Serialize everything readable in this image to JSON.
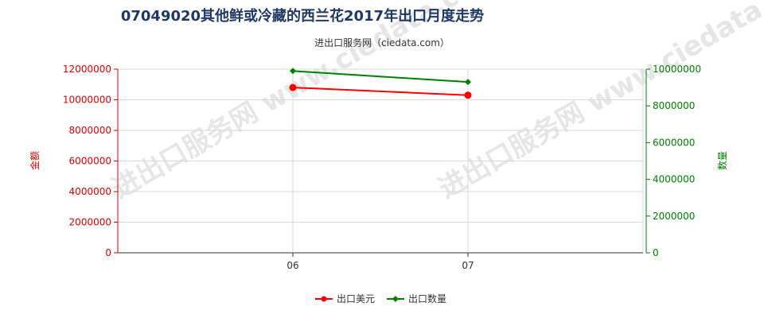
{
  "header": {
    "title": "07049020其他鲜或冷藏的西兰花2017年出口月度走势",
    "subtitle": "进出口服务网（ciedata.com）"
  },
  "watermark": "进出口服务网 www.ciedata.com",
  "chart_data": {
    "type": "line",
    "title": "07049020其他鲜或冷藏的西兰花2017年出口月度走势",
    "categories": [
      "06",
      "07"
    ],
    "y_left": {
      "label": "金额",
      "range": [
        0,
        12000000
      ],
      "ticks": [
        "0",
        "2000000",
        "4000000",
        "6000000",
        "8000000",
        "10000000",
        "12000000"
      ],
      "color": "#e00000"
    },
    "y_right": {
      "label": "数量",
      "range": [
        0,
        10000000
      ],
      "ticks": [
        "0",
        "2000000",
        "4000000",
        "6000000",
        "8000000",
        "10000000"
      ],
      "color": "#008000"
    },
    "grid": true,
    "legend_position": "bottom-center",
    "series": [
      {
        "name": "出口美元",
        "axis": "left",
        "color": "#ff0000",
        "marker": "circle",
        "values": [
          10800000,
          10300000
        ]
      },
      {
        "name": "出口数量",
        "axis": "right",
        "color": "#008000",
        "marker": "diamond",
        "values": [
          9900000,
          9300000
        ]
      }
    ]
  }
}
